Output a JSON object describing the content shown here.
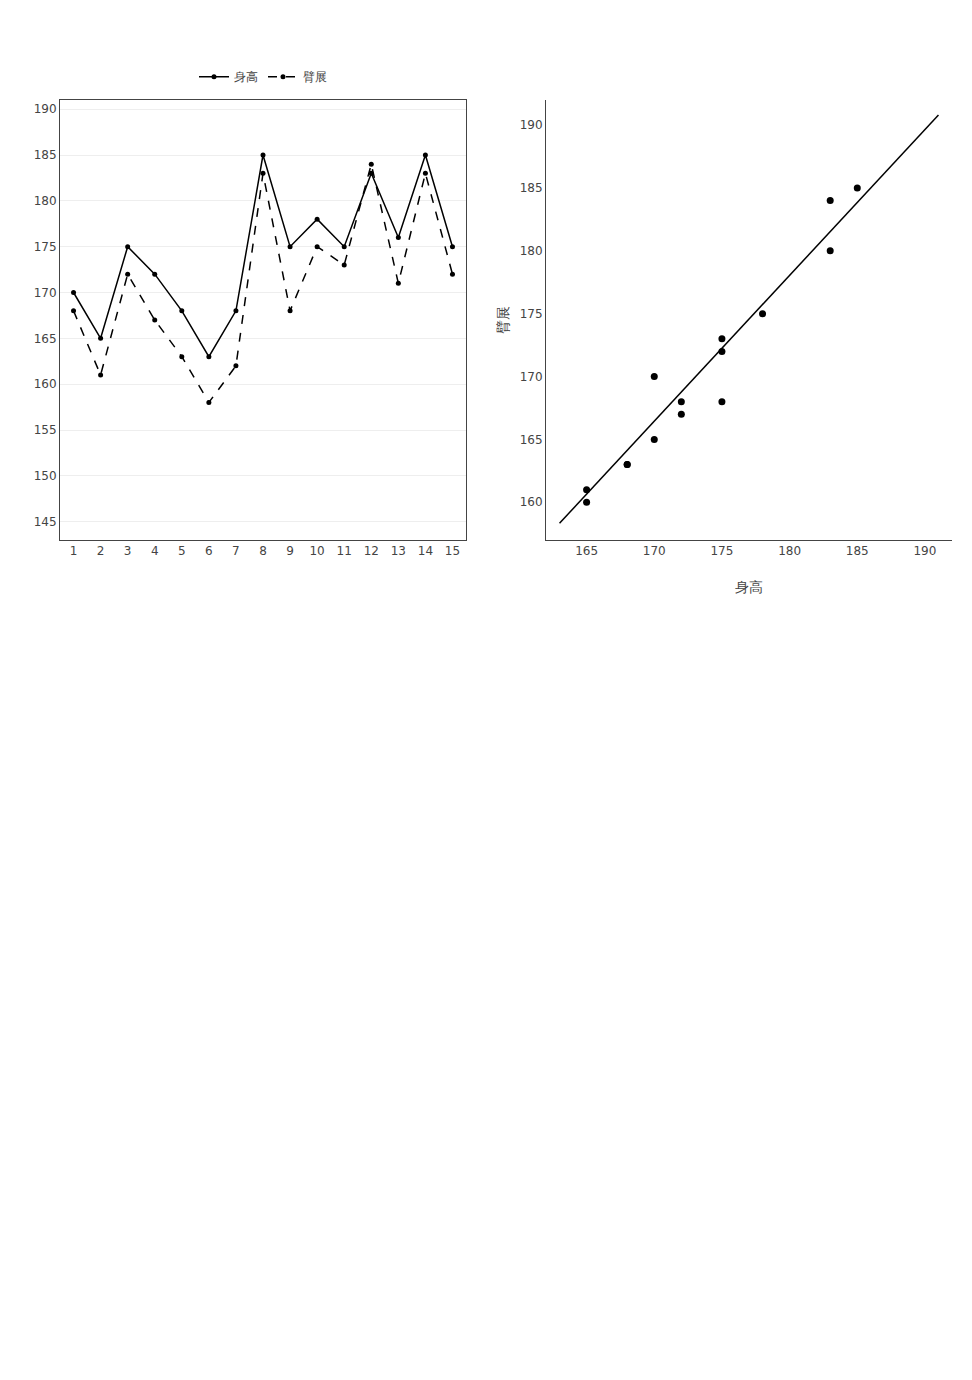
{
  "chart_data": [
    {
      "type": "line",
      "x": [
        1,
        2,
        3,
        4,
        5,
        6,
        7,
        8,
        9,
        10,
        11,
        12,
        13,
        14,
        15
      ],
      "series": [
        {
          "name": "身高",
          "color": "#000000",
          "line_style": "solid",
          "marker": "circle",
          "values": [
            170,
            165,
            175,
            172,
            168,
            163,
            168,
            185,
            175,
            178,
            175,
            183,
            176,
            185,
            175
          ]
        },
        {
          "name": "臂展",
          "color": "#000000",
          "line_style": "dashed",
          "marker": "circle",
          "values": [
            168,
            161,
            172,
            167,
            163,
            158,
            162,
            183,
            168,
            175,
            173,
            184,
            171,
            183,
            172
          ]
        }
      ],
      "xlim": [
        0.5,
        15.5
      ],
      "xticks": [
        1,
        2,
        3,
        4,
        5,
        6,
        7,
        8,
        9,
        10,
        11,
        12,
        13,
        14,
        15
      ],
      "ylim": [
        143,
        191
      ],
      "yticks": [
        145,
        150,
        155,
        160,
        165,
        170,
        175,
        180,
        185,
        190
      ],
      "grid": "y",
      "legend": "top"
    },
    {
      "type": "scatter",
      "x_label": "身高",
      "y_label": "臂展",
      "series": [
        {
          "type": "scatter",
          "color": "#000000",
          "marker": "circle",
          "x": [
            165,
            165,
            168,
            168,
            170,
            170,
            172,
            172,
            175,
            175,
            175,
            178,
            183,
            183,
            185
          ],
          "values": [
            160,
            161,
            163,
            163,
            165,
            170,
            167,
            168,
            172,
            173,
            168,
            175,
            180,
            184,
            185
          ]
        },
        {
          "type": "line",
          "color": "#000000",
          "line_style": "solid",
          "x": [
            163,
            191
          ],
          "values": [
            158.33,
            190.81
          ]
        }
      ],
      "xlim": [
        162,
        192
      ],
      "xticks": [
        165,
        170,
        175,
        180,
        185,
        190
      ],
      "ylim": [
        157,
        192
      ],
      "yticks": [
        160,
        165,
        170,
        175,
        180,
        185,
        190
      ],
      "grid": false
    }
  ]
}
